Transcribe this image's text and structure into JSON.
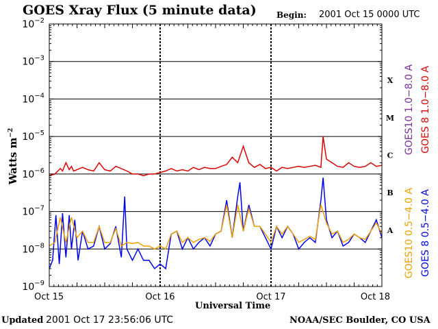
{
  "header": {
    "title": "GOES Xray Flux (5 minute data)",
    "begin_label": "Begin:",
    "begin_value": "2001 Oct 15 0000 UTC"
  },
  "footer": {
    "updated_label": "Updated",
    "updated_value": "2001 Oct 17 23:56:06 UTC",
    "credit": "NOAA/SEC Boulder, CO USA"
  },
  "colors": {
    "goes8_long": "#dd0000",
    "goes10_long": "#7a2f9a",
    "goes8_short": "#0000ee",
    "goes10_short": "#f0a000",
    "background": "#ffffff",
    "axis": "#000000"
  },
  "chart_data": {
    "type": "line",
    "y_scale": "log",
    "ylim": [
      1e-09,
      0.01
    ],
    "y_ticks": [
      {
        "value": 0.01,
        "label": "10",
        "exp": "−2"
      },
      {
        "value": 0.001,
        "label": "10",
        "exp": "−3"
      },
      {
        "value": 0.0001,
        "label": "10",
        "exp": "−4"
      },
      {
        "value": 1e-05,
        "label": "10",
        "exp": "−5"
      },
      {
        "value": 1e-06,
        "label": "10",
        "exp": "−6"
      },
      {
        "value": 1e-07,
        "label": "10",
        "exp": "−7"
      },
      {
        "value": 1e-08,
        "label": "10",
        "exp": "−8"
      },
      {
        "value": 1e-09,
        "label": "10",
        "exp": "−9"
      }
    ],
    "ylabel": "Watts m",
    "ylabel_exp": "−2",
    "xlabel": "Universal Time",
    "x_unit": "day",
    "xlim": [
      0,
      3
    ],
    "x_ticks": [
      {
        "value": 0,
        "label": "Oct 15"
      },
      {
        "value": 1,
        "label": "Oct 16"
      },
      {
        "value": 2,
        "label": "Oct 17"
      },
      {
        "value": 3,
        "label": "Oct 18"
      }
    ],
    "flare_classes": [
      {
        "label": "X",
        "value": 0.000316
      },
      {
        "label": "M",
        "value": 3.16e-05
      },
      {
        "label": "C",
        "value": 3.16e-06
      },
      {
        "label": "B",
        "value": 3.16e-07
      },
      {
        "label": "A",
        "value": 3.16e-08
      }
    ],
    "series": [
      {
        "name": "GOES 8 1.0−8.0 A",
        "color": "#dd0000",
        "x": [
          0,
          0.05,
          0.1,
          0.12,
          0.15,
          0.18,
          0.2,
          0.22,
          0.25,
          0.3,
          0.35,
          0.4,
          0.45,
          0.5,
          0.55,
          0.6,
          0.65,
          0.7,
          0.75,
          0.8,
          0.85,
          0.9,
          0.95,
          1.0,
          1.05,
          1.1,
          1.15,
          1.2,
          1.25,
          1.3,
          1.35,
          1.4,
          1.45,
          1.5,
          1.55,
          1.6,
          1.65,
          1.7,
          1.75,
          1.8,
          1.85,
          1.9,
          1.95,
          2.0,
          2.05,
          2.1,
          2.15,
          2.2,
          2.25,
          2.3,
          2.35,
          2.4,
          2.45,
          2.47,
          2.5,
          2.55,
          2.6,
          2.65,
          2.7,
          2.75,
          2.8,
          2.85,
          2.9,
          2.95,
          3.0
        ],
        "y": [
          9e-07,
          1e-06,
          1.4e-06,
          1.2e-06,
          2e-06,
          1.3e-06,
          1.6e-06,
          1.2e-06,
          1.3e-06,
          1.5e-06,
          1.3e-06,
          1.2e-06,
          2e-06,
          1.3e-06,
          1.2e-06,
          1.6e-06,
          1.4e-06,
          1.2e-06,
          1e-06,
          1e-06,
          9e-07,
          1e-06,
          1e-06,
          1.1e-06,
          1.2e-06,
          1.4e-06,
          1.2e-06,
          1.3e-06,
          1.2e-06,
          1.5e-06,
          1.3e-06,
          1.5e-06,
          1.4e-06,
          1.4e-06,
          1.6e-06,
          1.8e-06,
          2.8e-06,
          2e-06,
          5.5e-06,
          2e-06,
          1.5e-06,
          1.8e-06,
          1.4e-06,
          1.5e-06,
          1.2e-06,
          1.5e-06,
          1.4e-06,
          1.5e-06,
          1.6e-06,
          1.5e-06,
          1.6e-06,
          1.7e-06,
          1.5e-06,
          1e-05,
          2.5e-06,
          2e-06,
          1.6e-06,
          1.5e-06,
          2e-06,
          1.6e-06,
          1.5e-06,
          1.6e-06,
          2e-06,
          1.6e-06,
          1.7e-06
        ]
      },
      {
        "name": "GOES 8 0.5−4.0 A",
        "color": "#0000ee",
        "x": [
          0,
          0.03,
          0.06,
          0.09,
          0.12,
          0.15,
          0.18,
          0.2,
          0.23,
          0.26,
          0.3,
          0.35,
          0.4,
          0.45,
          0.5,
          0.55,
          0.6,
          0.65,
          0.68,
          0.7,
          0.75,
          0.8,
          0.85,
          0.9,
          0.95,
          1.0,
          1.05,
          1.1,
          1.15,
          1.2,
          1.25,
          1.3,
          1.35,
          1.4,
          1.45,
          1.5,
          1.55,
          1.6,
          1.65,
          1.7,
          1.72,
          1.75,
          1.8,
          1.85,
          1.9,
          1.95,
          2.0,
          2.05,
          2.1,
          2.15,
          2.2,
          2.25,
          2.3,
          2.35,
          2.4,
          2.45,
          2.47,
          2.5,
          2.55,
          2.6,
          2.65,
          2.7,
          2.75,
          2.8,
          2.85,
          2.9,
          2.95,
          3.0
        ],
        "y": [
          3e-09,
          5e-09,
          8e-08,
          4e-09,
          9e-08,
          6e-09,
          8e-08,
          1e-08,
          6e-08,
          5e-09,
          3e-08,
          1e-08,
          1.2e-08,
          4e-08,
          1e-08,
          1.4e-08,
          4e-08,
          6e-09,
          2.5e-07,
          1e-08,
          5e-09,
          1e-08,
          5e-09,
          5e-09,
          3e-09,
          4e-09,
          3e-09,
          2.5e-08,
          3e-08,
          1e-08,
          2e-08,
          1e-08,
          1.5e-08,
          2e-08,
          1.2e-08,
          2.5e-08,
          3e-08,
          2e-07,
          2e-08,
          2.5e-07,
          6e-07,
          3e-08,
          1.5e-07,
          4e-08,
          4e-08,
          2e-08,
          1e-08,
          4e-08,
          2e-08,
          4e-08,
          2.5e-08,
          1e-08,
          1.5e-08,
          2e-08,
          1.5e-08,
          2e-07,
          8e-07,
          6e-08,
          2e-08,
          3e-08,
          1.2e-08,
          1.5e-08,
          2.5e-08,
          2e-08,
          1.5e-08,
          3e-08,
          6e-08,
          2e-08
        ]
      },
      {
        "name": "GOES10 0.5−4.0 A",
        "color": "#f0a000",
        "x": [
          0,
          0.05,
          0.1,
          0.15,
          0.2,
          0.25,
          0.3,
          0.35,
          0.4,
          0.45,
          0.5,
          0.55,
          0.6,
          0.65,
          0.7,
          0.75,
          0.8,
          0.85,
          0.9,
          0.95,
          1.0,
          1.05,
          1.1,
          1.15,
          1.2,
          1.25,
          1.3,
          1.35,
          1.4,
          1.45,
          1.5,
          1.55,
          1.6,
          1.65,
          1.7,
          1.75,
          1.8,
          1.85,
          1.9,
          1.95,
          2.0,
          2.05,
          2.1,
          2.15,
          2.2,
          2.25,
          2.3,
          2.35,
          2.4,
          2.45,
          2.5,
          2.55,
          2.6,
          2.65,
          2.7,
          2.75,
          2.8,
          2.85,
          2.9,
          2.95,
          3.0
        ],
        "y": [
          1.2e-08,
          1.5e-08,
          7e-08,
          1.5e-08,
          7e-08,
          2e-08,
          3e-08,
          1.5e-08,
          1.5e-08,
          4e-08,
          1.5e-08,
          1.5e-08,
          3.5e-08,
          1.2e-08,
          1.5e-08,
          1.4e-08,
          1.5e-08,
          1.2e-08,
          1.2e-08,
          1e-08,
          1.2e-08,
          1e-08,
          2.5e-08,
          3e-08,
          1.5e-08,
          2e-08,
          1.5e-08,
          1.8e-08,
          2e-08,
          1.6e-08,
          2.5e-08,
          3e-08,
          1.5e-07,
          2e-08,
          1.5e-07,
          3e-08,
          1.2e-07,
          4e-08,
          4e-08,
          2.5e-08,
          1.5e-08,
          4e-08,
          2.5e-08,
          4e-08,
          2.5e-08,
          1.5e-08,
          1.8e-08,
          2.2e-08,
          1.8e-08,
          1.5e-07,
          5e-08,
          2.5e-08,
          3e-08,
          1.5e-08,
          1.8e-08,
          2.5e-08,
          2e-08,
          1.8e-08,
          3e-08,
          5e-08,
          2.5e-08
        ]
      }
    ],
    "legend_entries": [
      {
        "label": "GOES10 1.0−8.0 A",
        "color": "#7a2f9a"
      },
      {
        "label": "GOES 8 1.0−8.0 A",
        "color": "#dd0000"
      },
      {
        "label": "GOES10 0.5−4.0 A",
        "color": "#f0a000"
      },
      {
        "label": "GOES 8 0.5−4.0 A",
        "color": "#0000ee"
      }
    ]
  }
}
